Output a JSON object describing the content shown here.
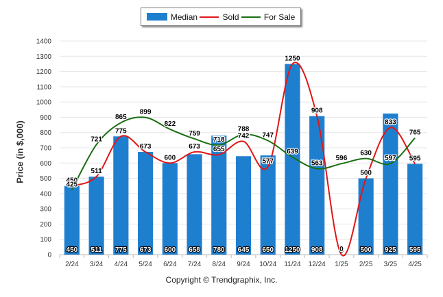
{
  "legend": {
    "items": [
      {
        "label": "Median",
        "kind": "bar",
        "color": "#1f7fcf"
      },
      {
        "label": "Sold",
        "kind": "line",
        "color": "#e01616"
      },
      {
        "label": "For Sale",
        "kind": "line",
        "color": "#1a6e12"
      }
    ]
  },
  "footer": {
    "copyright": "Copyright © Trendgraphix, Inc."
  },
  "chart_data": {
    "type": "bar",
    "title": "",
    "xlabel": "",
    "ylabel": "Price (in $,000)",
    "ylim": [
      0,
      1400
    ],
    "yticks": [
      0,
      100,
      200,
      300,
      400,
      500,
      600,
      700,
      800,
      900,
      1000,
      1100,
      1200,
      1300,
      1400
    ],
    "grid": true,
    "legend_position": "top-center",
    "categories": [
      "2/24",
      "3/24",
      "4/24",
      "5/24",
      "6/24",
      "7/24",
      "8/24",
      "9/24",
      "10/24",
      "11/24",
      "12/24",
      "1/25",
      "2/25",
      "3/25",
      "4/25"
    ],
    "series": [
      {
        "name": "Median",
        "type": "bar",
        "color": "#1f7fcf",
        "values": [
          450,
          511,
          775,
          673,
          600,
          658,
          780,
          645,
          650,
          1250,
          908,
          0,
          500,
          925,
          595
        ]
      },
      {
        "name": "Sold",
        "type": "line",
        "color": "#e01616",
        "values": [
          450,
          511,
          775,
          673,
          600,
          673,
          655,
          742,
          577,
          1250,
          908,
          0,
          500,
          833,
          595
        ]
      },
      {
        "name": "For Sale",
        "type": "line",
        "color": "#1a6e12",
        "values": [
          425,
          721,
          865,
          899,
          822,
          759,
          718,
          788,
          747,
          639,
          563,
          596,
          630,
          597,
          765
        ]
      }
    ]
  }
}
